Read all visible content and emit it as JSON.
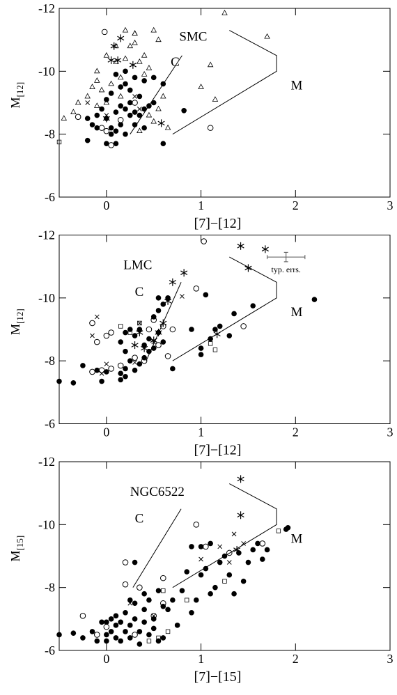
{
  "chart_data": [
    {
      "type": "scatter",
      "xlabel": "[7]−[12]",
      "ylabel": "M",
      "ylabel_sub": "[12]",
      "xlim": [
        -0.5,
        3
      ],
      "ylim": [
        -12,
        -6
      ],
      "xticks": [
        0,
        1,
        2,
        3
      ],
      "yticks": [
        -12,
        -10,
        -8,
        -6
      ],
      "y_inverted": true,
      "annotations": [
        {
          "text": "SMC",
          "x": 0.77,
          "y": -11.1
        },
        {
          "text": "C",
          "x": 0.68,
          "y": -10.3
        },
        {
          "text": "M",
          "x": 1.95,
          "y": -9.55
        }
      ],
      "boundaries": [
        {
          "x": [
            0.25,
            0.8
          ],
          "y": [
            -8,
            -10.5
          ]
        },
        {
          "x": [
            0.7,
            1.8,
            1.8,
            1.3
          ],
          "y": [
            -8,
            -10,
            -10.5,
            -11.3
          ]
        }
      ],
      "series": [
        {
          "marker": "filled-circle",
          "color": "#000000",
          "x": [
            -0.2,
            -0.1,
            0,
            0.1,
            0.05,
            0.15,
            0.2,
            0.3,
            -0.1,
            -0.05,
            0,
            0.1,
            0.15,
            0.2,
            0.25,
            0.3,
            0.35,
            0.4,
            0.45,
            0.5,
            0,
            0.05,
            0.15,
            0.2,
            0.25,
            0.35,
            0.3,
            0.1,
            0.2,
            0.4,
            0.5,
            0.6,
            -0.15,
            -0.2,
            0.6,
            0.82,
            0.1,
            0.4,
            0.25,
            0.05
          ],
          "values": [
            -7.8,
            -8.2,
            -7.7,
            -7.7,
            -8.2,
            -8.3,
            -8,
            -8.3,
            -8.6,
            -8.8,
            -8.5,
            -8.7,
            -8.9,
            -8.8,
            -9,
            -8.7,
            -8.6,
            -8.8,
            -8.9,
            -9,
            -9.1,
            -9.3,
            -9.5,
            -9.6,
            -9.4,
            -9.2,
            -9.8,
            -9.9,
            -10,
            -9.7,
            -9.8,
            -9.6,
            -8.3,
            -8.5,
            -7.7,
            -8.75,
            -8.1,
            -8.2,
            -8.6,
            -8
          ]
        },
        {
          "marker": "open-circle",
          "color": "#000000",
          "x": [
            -0.02,
            0,
            -0.05,
            0.05,
            -0.3,
            0.3,
            1.1,
            0.15
          ],
          "values": [
            -11.25,
            -8.1,
            -8.2,
            -7.65,
            -8.55,
            -9,
            -8.2,
            -8.45
          ]
        },
        {
          "marker": "triangle",
          "color": "#000000",
          "x": [
            -0.45,
            -0.35,
            -0.3,
            -0.2,
            -0.15,
            -0.1,
            -0.05,
            0,
            0.05,
            0.1,
            0.15,
            0.2,
            0.25,
            0.3,
            0.35,
            0.4,
            0.45,
            0.5,
            0.55,
            0.6,
            0.55,
            0.45,
            0.35,
            0.3,
            0.2,
            0.1,
            0,
            -0.1,
            1.25,
            1.7,
            1.1,
            1,
            1.15,
            0.65,
            0.5,
            0.4,
            0.3,
            -0.1,
            0.15
          ],
          "values": [
            -8.5,
            -8.7,
            -9,
            -9.2,
            -9.5,
            -9.7,
            -9.4,
            -9,
            -9.6,
            -10.3,
            -9.8,
            -10.4,
            -10.8,
            -11.2,
            -10.3,
            -9.9,
            -10.1,
            -11.3,
            -11,
            -9.2,
            -8.8,
            -8.6,
            -8.1,
            -11.2,
            -11.3,
            -10.8,
            -10.5,
            -10,
            -11.85,
            -11.1,
            -10.2,
            -9.5,
            -9.1,
            -8.2,
            -8.4,
            -10.5,
            -10.9,
            -8.9,
            -9.2
          ]
        },
        {
          "marker": "cross",
          "color": "#000000",
          "x": [
            -0.2,
            0,
            0.3,
            0.35
          ],
          "values": [
            -9,
            -8.6,
            -9.2,
            -8.8
          ]
        },
        {
          "marker": "asterisk",
          "color": "#000000",
          "x": [
            0.15,
            0.08,
            0.05,
            0.12,
            0.28,
            0.58,
            0
          ],
          "values": [
            -11.05,
            -10.8,
            -10.35,
            -10.35,
            -10.2,
            -8.35,
            -8.5
          ]
        },
        {
          "marker": "square",
          "color": "#000000",
          "x": [
            -0.5
          ],
          "values": [
            -7.75
          ]
        }
      ]
    },
    {
      "type": "scatter",
      "xlabel": "[7]−[12]",
      "ylabel": "M",
      "ylabel_sub": "[12]",
      "xlim": [
        -0.5,
        3
      ],
      "ylim": [
        -12,
        -6
      ],
      "xticks": [
        0,
        1,
        2,
        3
      ],
      "yticks": [
        -12,
        -10,
        -8,
        -6
      ],
      "y_inverted": true,
      "annotations": [
        {
          "text": "LMC",
          "x": 0.18,
          "y": -11.05
        },
        {
          "text": "C",
          "x": 0.3,
          "y": -10.2
        },
        {
          "text": "M",
          "x": 1.95,
          "y": -9.55
        }
      ],
      "boundaries": [
        {
          "x": [
            0.42,
            0.79
          ],
          "y": [
            -8,
            -10.5
          ]
        },
        {
          "x": [
            0.7,
            1.8,
            1.8,
            1.3
          ],
          "y": [
            -8,
            -10,
            -10.5,
            -11.3
          ]
        }
      ],
      "error_bar": {
        "x": 1.9,
        "y": -11.3,
        "xerr": 0.2,
        "yerr": 0.15,
        "label": "typ. errs."
      },
      "series": [
        {
          "marker": "filled-circle",
          "color": "#000000",
          "x": [
            -0.5,
            -0.35,
            -0.25,
            -0.1,
            -0.05,
            0,
            0.15,
            0.15,
            0.2,
            0.2,
            0.3,
            0.35,
            0.25,
            0.4,
            0.2,
            0.15,
            0.2,
            0.25,
            0.3,
            0.35,
            0.4,
            0.45,
            0.5,
            0.55,
            0.5,
            0.55,
            0.6,
            0.55,
            0.65,
            1.05,
            0.7,
            1,
            1.1,
            1.15,
            1.2,
            1.3,
            1.35,
            1.55,
            2.2,
            1,
            0.9,
            0.6,
            0.45
          ],
          "values": [
            -7.35,
            -7.3,
            -7.85,
            -7.7,
            -7.35,
            -7.65,
            -7.6,
            -7.4,
            -7.5,
            -7.75,
            -7.7,
            -7.9,
            -8,
            -8.1,
            -8.3,
            -8.6,
            -8.9,
            -9,
            -8.8,
            -9,
            -8.5,
            -8.7,
            -8.4,
            -8.9,
            -9.4,
            -9.6,
            -9.8,
            -10,
            -10,
            -10.1,
            -7.75,
            -8.2,
            -8.7,
            -9,
            -9.1,
            -8.8,
            -9.5,
            -9.75,
            -9.95,
            -8.4,
            -9,
            -8.6,
            -8.3
          ]
        },
        {
          "marker": "open-circle",
          "color": "#000000",
          "x": [
            -0.15,
            -0.05,
            0.05,
            0.15,
            -0.1,
            0,
            0.05,
            -0.15,
            0.3,
            0.4,
            0.5,
            0.55,
            0.6,
            0.7,
            0.65,
            0.95,
            1.03,
            1.45,
            0.45
          ],
          "values": [
            -7.65,
            -7.7,
            -7.75,
            -7.85,
            -8.6,
            -8.8,
            -8.9,
            -9.2,
            -8.1,
            -8,
            -9.3,
            -8.5,
            -9.1,
            -9,
            -8.15,
            -10.3,
            -11.8,
            -9.1,
            -9
          ]
        },
        {
          "marker": "cross",
          "color": "#000000",
          "x": [
            -0.05,
            0,
            -0.15,
            -0.1,
            0.3,
            0.35,
            0.8,
            0.5
          ],
          "values": [
            -7.6,
            -7.9,
            -8.8,
            -9.4,
            -7.95,
            -9.2,
            -10.05,
            -8.6
          ]
        },
        {
          "marker": "asterisk",
          "color": "#000000",
          "x": [
            0.3,
            0.35,
            0.4,
            0.5,
            0.55,
            0.6,
            0.65,
            0.7,
            0.82,
            1.17,
            1.42,
            1.5,
            1.68
          ],
          "values": [
            -8.5,
            -8.9,
            -8.4,
            -8.65,
            -8.9,
            -9.2,
            -9.9,
            -10.5,
            -10.8,
            -8.85,
            -11.65,
            -10.95,
            -11.55
          ]
        },
        {
          "marker": "square",
          "color": "#000000",
          "x": [
            0.15,
            0.25,
            0.35,
            1.15,
            1.1
          ],
          "values": [
            -9.1,
            -8.9,
            -9.2,
            -8.35,
            -8.55
          ]
        }
      ]
    },
    {
      "type": "scatter",
      "xlabel": "[7]−[15]",
      "ylabel": "M",
      "ylabel_sub": "[15]",
      "xlim": [
        -0.5,
        3
      ],
      "ylim": [
        -12,
        -6
      ],
      "xticks": [
        0,
        1,
        2,
        3
      ],
      "yticks": [
        -12,
        -10,
        -8,
        -6
      ],
      "y_inverted": true,
      "annotations": [
        {
          "text": "NGC6522",
          "x": 0.25,
          "y": -11.05
        },
        {
          "text": "C",
          "x": 0.3,
          "y": -10.2
        },
        {
          "text": "M",
          "x": 1.95,
          "y": -9.55
        }
      ],
      "boundaries": [
        {
          "x": [
            0.28,
            0.79
          ],
          "y": [
            -8,
            -10.5
          ]
        },
        {
          "x": [
            0.7,
            1.8,
            1.8,
            1.3
          ],
          "y": [
            -8,
            -10,
            -10.5,
            -11.3
          ]
        }
      ],
      "series": [
        {
          "marker": "filled-circle",
          "color": "#000000",
          "x": [
            -0.35,
            -0.25,
            -0.15,
            -0.1,
            -0.05,
            0,
            0,
            0.05,
            0.05,
            0.1,
            0.1,
            0.15,
            0.15,
            0.2,
            0.2,
            0.25,
            0.25,
            0.3,
            0.3,
            0.35,
            0.35,
            0.4,
            0.4,
            0.45,
            0.45,
            0.5,
            0.5,
            0.55,
            0.6,
            0.3,
            0.25,
            0.4,
            0.55,
            0.65,
            0.7,
            0.75,
            0.8,
            0.85,
            0.9,
            0.95,
            1,
            1.05,
            1.1,
            1.15,
            1.2,
            1.25,
            1.3,
            1.35,
            1.4,
            1.45,
            1.5,
            1.55,
            1.6,
            1.65,
            1.7,
            1.9,
            1.92,
            1,
            1.1,
            0.9,
            -0.5,
            0,
            0.1,
            0.6
          ],
          "values": [
            -6.55,
            -6.4,
            -6.6,
            -6.3,
            -6.9,
            -6.5,
            -6.3,
            -7,
            -6.6,
            -6.8,
            -6.4,
            -6.9,
            -6.3,
            -7.2,
            -6.6,
            -6.8,
            -6.4,
            -7,
            -7.5,
            -6.6,
            -6.2,
            -6.9,
            -7.3,
            -6.5,
            -7.6,
            -6.7,
            -7,
            -6.3,
            -7.4,
            -8.8,
            -7.6,
            -7.8,
            -7.9,
            -7.3,
            -7.6,
            -6.8,
            -7.9,
            -8.5,
            -7.2,
            -7.6,
            -8.4,
            -8.6,
            -7.8,
            -8,
            -8.8,
            -9,
            -8.4,
            -7.8,
            -9.1,
            -8.2,
            -8.8,
            -9.2,
            -9.4,
            -8.9,
            -9.2,
            -9.85,
            -9.9,
            -9.3,
            -9.4,
            -9.3,
            -6.5,
            -6.9,
            -7.1,
            -6.4
          ]
        },
        {
          "marker": "open-circle",
          "color": "#000000",
          "x": [
            -0.25,
            0,
            0.2,
            0.2,
            0.3,
            0.35,
            0.5,
            0.6,
            0.6,
            0.95,
            1.05,
            1.3,
            1.65,
            -0.1
          ],
          "values": [
            -7.1,
            -6.75,
            -8.8,
            -8.1,
            -6.5,
            -8,
            -7.1,
            -7.5,
            -8.3,
            -10,
            -9.3,
            -9.1,
            -9.4,
            -6.5
          ]
        },
        {
          "marker": "cross",
          "color": "#000000",
          "x": [
            0.25,
            0.5,
            1,
            1.2,
            1.3,
            1.35,
            1.45
          ],
          "values": [
            -7.5,
            -7.1,
            -8.9,
            -9.3,
            -8.8,
            -9.7,
            -9.4
          ]
        },
        {
          "marker": "asterisk",
          "color": "#000000",
          "x": [
            1.42,
            1.42,
            1.38
          ],
          "values": [
            -11.45,
            -10.3,
            -9.2
          ]
        },
        {
          "marker": "square",
          "color": "#000000",
          "x": [
            0.55,
            0.45,
            0.6,
            0.85,
            1.25,
            1.82,
            0.65
          ],
          "values": [
            -6.4,
            -6.3,
            -7.9,
            -7.6,
            -8.2,
            -9.8,
            -6.6
          ]
        }
      ]
    }
  ]
}
